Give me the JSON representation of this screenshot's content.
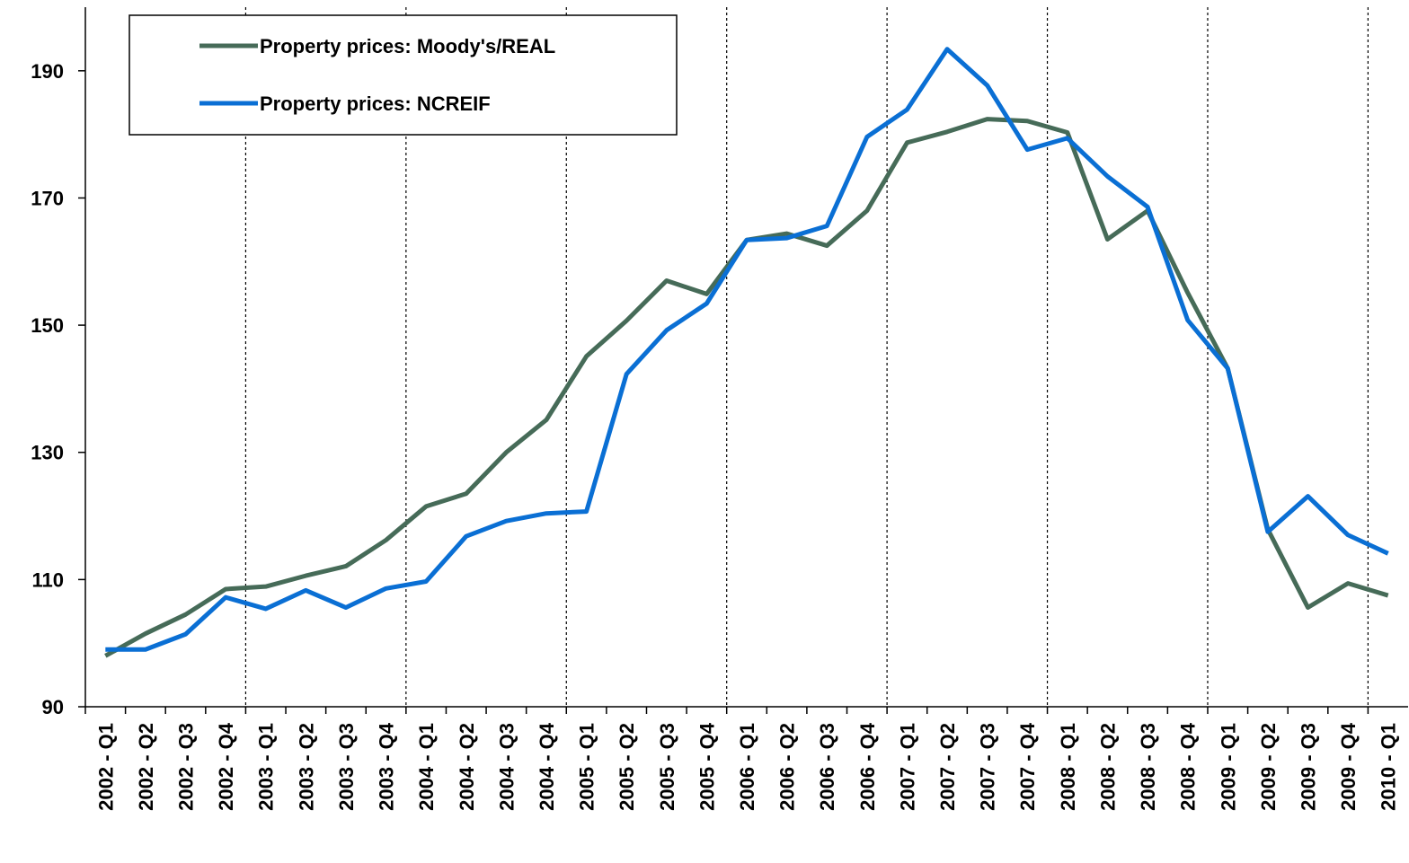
{
  "chart_data": {
    "type": "line",
    "categories": [
      "2002 - Q1",
      "2002 - Q2",
      "2002 - Q3",
      "2002 - Q4",
      "2003 - Q1",
      "2003 - Q2",
      "2003 - Q3",
      "2003 - Q4",
      "2004 - Q1",
      "2004 - Q2",
      "2004 - Q3",
      "2004 - Q4",
      "2005 - Q1",
      "2005 - Q2",
      "2005 - Q3",
      "2005 - Q4",
      "2006 - Q1",
      "2006 - Q2",
      "2006 - Q3",
      "2006 - Q4",
      "2007 - Q1",
      "2007 - Q2",
      "2007 - Q3",
      "2007 - Q4",
      "2008 - Q1",
      "2008 - Q2",
      "2008 - Q3",
      "2008 - Q4",
      "2009 - Q1",
      "2009 - Q2",
      "2009 - Q3",
      "2009 - Q4",
      "2010 - Q1"
    ],
    "series": [
      {
        "name": "Property prices: Moody's/REAL",
        "color": "#466b58",
        "values": [
          98.0,
          101.5,
          104.5,
          108.5,
          108.9,
          110.6,
          112.1,
          116.2,
          121.5,
          123.5,
          130.0,
          135.1,
          145.1,
          150.7,
          157.0,
          154.9,
          163.4,
          164.4,
          162.5,
          168.0,
          178.7,
          180.4,
          182.4,
          182.1,
          180.3,
          163.5,
          168.0,
          155.1,
          143.2,
          117.9,
          105.6,
          109.4,
          107.5
        ]
      },
      {
        "name": "Property prices: NCREIF",
        "color": "#0a6fd4",
        "values": [
          99.0,
          99.0,
          101.4,
          107.2,
          105.4,
          108.3,
          105.6,
          108.6,
          109.7,
          116.8,
          119.2,
          120.4,
          120.7,
          142.3,
          149.2,
          153.4,
          163.4,
          163.7,
          165.6,
          179.6,
          183.9,
          193.4,
          187.7,
          177.6,
          179.4,
          173.4,
          168.6,
          150.8,
          143.2,
          117.5,
          123.1,
          117.0,
          114.1
        ]
      }
    ],
    "ylim": [
      90,
      200
    ],
    "yticks": [
      90,
      110,
      130,
      150,
      170,
      190
    ]
  }
}
